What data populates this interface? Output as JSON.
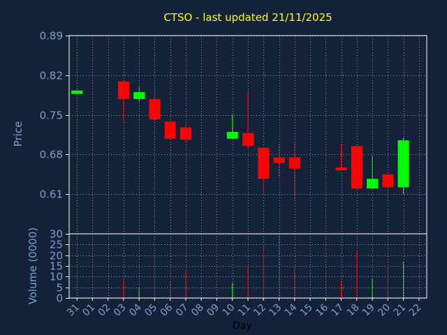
{
  "chart_data": {
    "title": "CTSO - last updated 21/11/2025",
    "colors": {
      "background": "#132238",
      "up": "#00ff00",
      "down": "#ff0000",
      "title": "#ffff00",
      "axis_text": "#7fa0c8",
      "grid": "#ffffff"
    },
    "x_labels": [
      "31",
      "01",
      "02",
      "03",
      "04",
      "05",
      "06",
      "07",
      "08",
      "09",
      "10",
      "11",
      "12",
      "13",
      "14",
      "15",
      "16",
      "17",
      "18",
      "19",
      "20",
      "21",
      "22"
    ],
    "price_panel": {
      "type": "candlestick",
      "ylabel": "Price",
      "ylim": [
        0.54,
        0.89
      ],
      "yticks": [
        "0.89",
        "0.82",
        "0.75",
        "0.68",
        "0.61"
      ],
      "ytick_values": [
        0.89,
        0.82,
        0.75,
        0.68,
        0.61
      ],
      "candles": [
        {
          "x": 0,
          "open": 0.787,
          "close": 0.793,
          "high": 0.793,
          "low": 0.787
        },
        {
          "x": 3,
          "open": 0.809,
          "close": 0.778,
          "high": 0.809,
          "low": 0.738
        },
        {
          "x": 4,
          "open": 0.778,
          "close": 0.79,
          "high": 0.799,
          "low": 0.773
        },
        {
          "x": 5,
          "open": 0.778,
          "close": 0.742,
          "high": 0.799,
          "low": 0.742
        },
        {
          "x": 6,
          "open": 0.738,
          "close": 0.708,
          "high": 0.738,
          "low": 0.708
        },
        {
          "x": 7,
          "open": 0.728,
          "close": 0.706,
          "high": 0.734,
          "low": 0.702
        },
        {
          "x": 10,
          "open": 0.708,
          "close": 0.72,
          "high": 0.75,
          "low": 0.708
        },
        {
          "x": 11,
          "open": 0.718,
          "close": 0.695,
          "high": 0.79,
          "low": 0.69
        },
        {
          "x": 12,
          "open": 0.692,
          "close": 0.637,
          "high": 0.692,
          "low": 0.61
        },
        {
          "x": 13,
          "open": 0.675,
          "close": 0.665,
          "high": 0.699,
          "low": 0.64
        },
        {
          "x": 14,
          "open": 0.675,
          "close": 0.655,
          "high": 0.701,
          "low": 0.6
        },
        {
          "x": 17,
          "open": 0.657,
          "close": 0.652,
          "high": 0.699,
          "low": 0.652
        },
        {
          "x": 18,
          "open": 0.695,
          "close": 0.62,
          "high": 0.695,
          "low": 0.62
        },
        {
          "x": 19,
          "open": 0.62,
          "close": 0.637,
          "high": 0.678,
          "low": 0.62
        },
        {
          "x": 20,
          "open": 0.645,
          "close": 0.622,
          "high": 0.645,
          "low": 0.6
        },
        {
          "x": 21,
          "open": 0.622,
          "close": 0.705,
          "high": 0.71,
          "low": 0.61
        }
      ]
    },
    "volume_panel": {
      "type": "bar",
      "ylabel": "Volume (0000)",
      "ylim": [
        0,
        30
      ],
      "yticks": [
        "30",
        "25",
        "20",
        "15",
        "10",
        "5",
        "0"
      ],
      "ytick_values": [
        30,
        25,
        20,
        15,
        10,
        5,
        0
      ],
      "bars": [
        {
          "x": 3,
          "value": 9,
          "dir": "down"
        },
        {
          "x": 4,
          "value": 5,
          "dir": "up"
        },
        {
          "x": 5,
          "value": 20,
          "dir": "down"
        },
        {
          "x": 6,
          "value": 8,
          "dir": "down"
        },
        {
          "x": 7,
          "value": 13,
          "dir": "down"
        },
        {
          "x": 10,
          "value": 7,
          "dir": "up"
        },
        {
          "x": 11,
          "value": 15,
          "dir": "down"
        },
        {
          "x": 12,
          "value": 24,
          "dir": "down"
        },
        {
          "x": 13,
          "value": 30,
          "dir": "down"
        },
        {
          "x": 14,
          "value": 14,
          "dir": "down"
        },
        {
          "x": 17,
          "value": 8,
          "dir": "down"
        },
        {
          "x": 18,
          "value": 22,
          "dir": "down"
        },
        {
          "x": 19,
          "value": 9,
          "dir": "up"
        },
        {
          "x": 20,
          "value": 16,
          "dir": "down"
        },
        {
          "x": 21,
          "value": 17,
          "dir": "up"
        }
      ]
    },
    "xlabel": "Day"
  }
}
